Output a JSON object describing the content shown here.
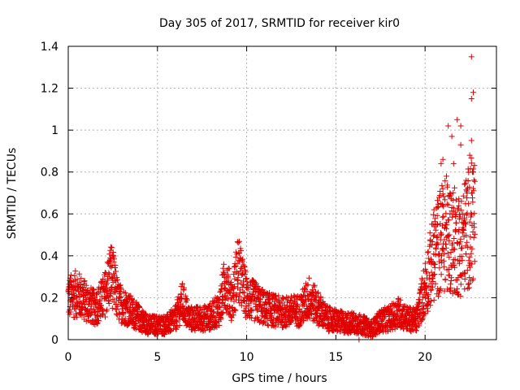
{
  "chart_data": {
    "type": "scatter",
    "title": "Day 305 of 2017, SRMTID for receiver kir0",
    "xlabel": "GPS time / hours",
    "ylabel": "SRMTID / TECUs",
    "xlim": [
      0,
      24
    ],
    "ylim": [
      0,
      1.4
    ],
    "xticks": [
      0,
      5,
      10,
      15,
      20
    ],
    "xtick_labels": [
      "0",
      "5",
      "10",
      "15",
      "20"
    ],
    "yticks": [
      0,
      0.2,
      0.4,
      0.6,
      0.8,
      1,
      1.2,
      1.4
    ],
    "ytick_labels": [
      "0",
      "0.2",
      "0.4",
      "0.6",
      "0.8",
      "1",
      "1.2",
      "1.4"
    ],
    "grid": true,
    "marker": "+",
    "color": "#e00000",
    "trend": [
      [
        0.0,
        0.2
      ],
      [
        0.5,
        0.22
      ],
      [
        1.0,
        0.18
      ],
      [
        1.5,
        0.15
      ],
      [
        2.0,
        0.2
      ],
      [
        2.4,
        0.32
      ],
      [
        2.8,
        0.18
      ],
      [
        3.3,
        0.15
      ],
      [
        4.0,
        0.1
      ],
      [
        4.5,
        0.07
      ],
      [
        5.0,
        0.07
      ],
      [
        5.5,
        0.07
      ],
      [
        6.0,
        0.1
      ],
      [
        6.4,
        0.18
      ],
      [
        6.8,
        0.1
      ],
      [
        7.5,
        0.1
      ],
      [
        8.0,
        0.11
      ],
      [
        8.5,
        0.15
      ],
      [
        8.8,
        0.28
      ],
      [
        9.2,
        0.18
      ],
      [
        9.5,
        0.34
      ],
      [
        10.0,
        0.2
      ],
      [
        10.5,
        0.18
      ],
      [
        11.0,
        0.15
      ],
      [
        12.0,
        0.13
      ],
      [
        13.0,
        0.14
      ],
      [
        13.5,
        0.2
      ],
      [
        14.0,
        0.15
      ],
      [
        14.5,
        0.1
      ],
      [
        15.0,
        0.09
      ],
      [
        15.5,
        0.08
      ],
      [
        16.0,
        0.08
      ],
      [
        16.5,
        0.07
      ],
      [
        17.0,
        0.05
      ],
      [
        17.5,
        0.09
      ],
      [
        18.0,
        0.1
      ],
      [
        18.5,
        0.13
      ],
      [
        19.0,
        0.1
      ],
      [
        19.5,
        0.09
      ],
      [
        20.0,
        0.25
      ],
      [
        20.5,
        0.4
      ],
      [
        21.0,
        0.5
      ],
      [
        21.5,
        0.48
      ],
      [
        22.0,
        0.45
      ],
      [
        22.5,
        0.55
      ],
      [
        22.8,
        0.6
      ]
    ],
    "extreme_points": [
      [
        22.6,
        1.35
      ],
      [
        22.7,
        1.18
      ],
      [
        22.6,
        1.15
      ],
      [
        21.8,
        1.05
      ],
      [
        22.0,
        1.02
      ],
      [
        21.3,
        1.02
      ],
      [
        21.5,
        0.97
      ],
      [
        22.6,
        0.95
      ],
      [
        22.0,
        0.93
      ],
      [
        22.5,
        0.88
      ],
      [
        21.0,
        0.86
      ],
      [
        20.9,
        0.84
      ],
      [
        21.6,
        0.84
      ],
      [
        22.7,
        0.8
      ],
      [
        21.2,
        0.78
      ],
      [
        22.3,
        0.76
      ],
      [
        21.0,
        0.72
      ],
      [
        22.6,
        0.7
      ],
      [
        21.9,
        0.66
      ],
      [
        20.5,
        0.62
      ],
      [
        21.4,
        0.6
      ],
      [
        22.2,
        0.58
      ],
      [
        20.7,
        0.55
      ],
      [
        21.7,
        0.52
      ],
      [
        16.3,
        0.0
      ]
    ]
  }
}
